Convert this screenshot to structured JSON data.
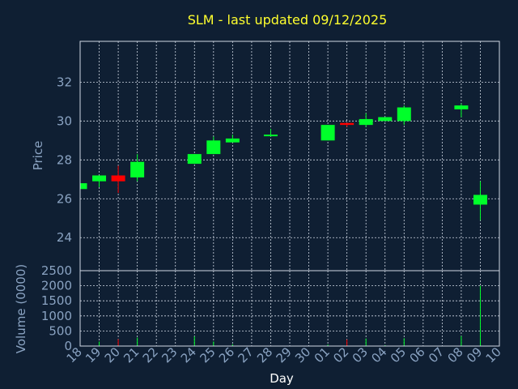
{
  "chart_data": {
    "type": "candlestick",
    "title": "SLM - last updated 09/12/2025",
    "xlabel": "Day",
    "colors": {
      "background": "#0f1f33",
      "up": "#00ff2a",
      "down": "#ff0000",
      "title": "#ffff2e",
      "axis_text": "#8aa3c2"
    },
    "x_ticks": [
      "18",
      "19",
      "20",
      "21",
      "22",
      "23",
      "24",
      "25",
      "26",
      "27",
      "28",
      "29",
      "30",
      "01",
      "02",
      "03",
      "04",
      "05",
      "06",
      "07",
      "08",
      "09",
      "10"
    ],
    "price_panel": {
      "ylabel": "Price",
      "ylim": [
        22.3,
        34.1
      ],
      "y_ticks": [
        24,
        26,
        28,
        30,
        32
      ],
      "grid": true
    },
    "volume_panel": {
      "ylabel": "Volume (0000)",
      "ylim": [
        0,
        2500
      ],
      "y_ticks": [
        0,
        500,
        1000,
        1500,
        2000,
        2500
      ],
      "grid": true
    },
    "candles": [
      {
        "day": "18",
        "open": 26.5,
        "close": 26.8,
        "high": 26.8,
        "low": 26.5,
        "volume": 40
      },
      {
        "day": "19",
        "open": 26.9,
        "close": 27.2,
        "high": 27.2,
        "low": 26.6,
        "volume": 150
      },
      {
        "day": "20",
        "open": 27.2,
        "close": 26.9,
        "high": 27.7,
        "low": 26.3,
        "volume": 230
      },
      {
        "day": "21",
        "open": 27.1,
        "close": 27.9,
        "high": 28.3,
        "low": 26.9,
        "volume": 280
      },
      {
        "day": "24",
        "open": 27.8,
        "close": 28.3,
        "high": 28.3,
        "low": 27.8,
        "volume": 320
      },
      {
        "day": "25",
        "open": 28.3,
        "close": 29.0,
        "high": 29.2,
        "low": 28.3,
        "volume": 150
      },
      {
        "day": "26",
        "open": 28.9,
        "close": 29.1,
        "high": 29.3,
        "low": 28.9,
        "volume": 60
      },
      {
        "day": "28",
        "open": 29.3,
        "close": 29.3,
        "high": 29.6,
        "low": 29.2,
        "volume": 10
      },
      {
        "day": "01",
        "open": 29.0,
        "close": 29.8,
        "high": 29.8,
        "low": 29.0,
        "volume": 50
      },
      {
        "day": "02",
        "open": 29.9,
        "close": 29.8,
        "high": 29.9,
        "low": 29.7,
        "volume": 220
      },
      {
        "day": "03",
        "open": 29.8,
        "close": 30.1,
        "high": 30.4,
        "low": 29.7,
        "volume": 250
      },
      {
        "day": "04",
        "open": 30.0,
        "close": 30.2,
        "high": 30.2,
        "low": 30.0,
        "volume": 30
      },
      {
        "day": "05",
        "open": 30.0,
        "close": 30.7,
        "high": 30.8,
        "low": 29.8,
        "volume": 260
      },
      {
        "day": "08",
        "open": 30.6,
        "close": 30.8,
        "high": 30.9,
        "low": 30.2,
        "volume": 330
      },
      {
        "day": "09",
        "open": 25.7,
        "close": 26.2,
        "high": 26.9,
        "low": 24.9,
        "volume": 2000
      }
    ]
  }
}
